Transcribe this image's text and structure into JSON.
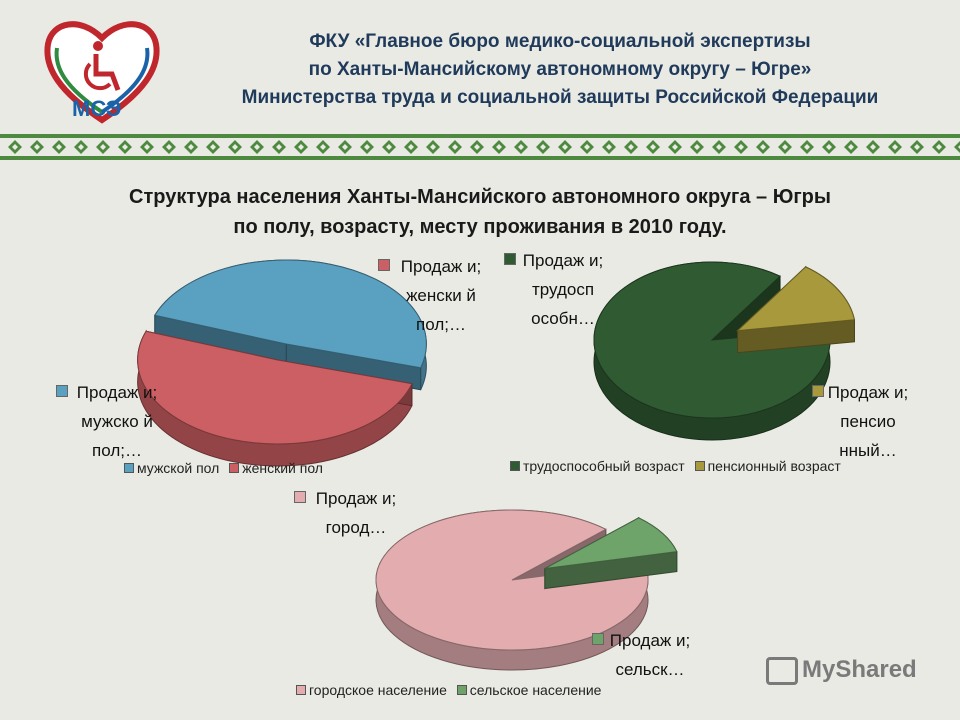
{
  "header": {
    "line1": "ФКУ «Главное бюро медико-социальной экспертизы",
    "line2": "по Ханты-Мансийскому автономному округу – Югре»",
    "line3": "Министерства труда и социальной защиты Российской Федерации",
    "logo_text": "МСЭ"
  },
  "slide_title": {
    "line1": "Структура населения Ханты-Мансийского автономного округа – Югры",
    "line2": "по полу, возрасту, месту проживания в 2010 году."
  },
  "watermark": "MyShared",
  "chart_data": [
    {
      "type": "pie",
      "categories": [
        "мужской пол",
        "женский пол"
      ],
      "values": [
        49,
        51
      ],
      "colors": [
        "#5aa0c0",
        "#cc5f63"
      ],
      "data_labels": [
        "Продаж и; мужско й пол;…",
        "Продаж и; женски й пол;…"
      ],
      "legend": "bottom"
    },
    {
      "type": "pie",
      "categories": [
        "трудоспособный возраст",
        "пенсионный возраст"
      ],
      "values": [
        87,
        13
      ],
      "colors": [
        "#2f5a32",
        "#a8993c"
      ],
      "data_labels": [
        "Продаж и; трудосп особн…",
        "Продаж и; пенсио нный…"
      ],
      "legend": "bottom"
    },
    {
      "type": "pie",
      "categories": [
        "городское население",
        "сельское население"
      ],
      "values": [
        91,
        9
      ],
      "colors": [
        "#e3adb0",
        "#6ea36a"
      ],
      "data_labels": [
        "Продаж и; город…",
        "Продаж и; сельск…"
      ],
      "legend": "bottom"
    }
  ]
}
